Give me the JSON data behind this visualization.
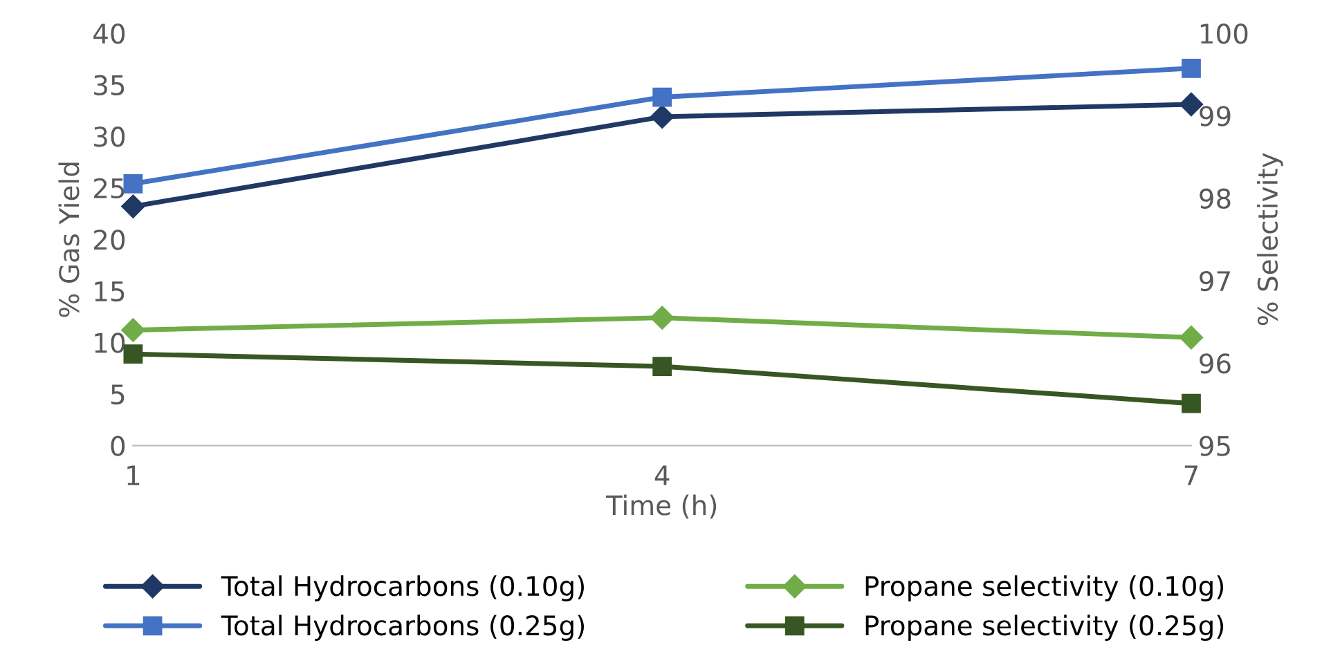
{
  "chart_data": {
    "type": "line",
    "xlabel": "Time (h)",
    "ylabel": "% Gas Yield",
    "y2label": "% Selectivity",
    "x": [
      1,
      4,
      7
    ],
    "xlim": [
      1,
      7
    ],
    "xticks": [
      1,
      4,
      7
    ],
    "ylim": [
      0,
      40
    ],
    "yticks": [
      0,
      5,
      10,
      15,
      20,
      25,
      30,
      35,
      40
    ],
    "y2lim": [
      95,
      100
    ],
    "y2ticks": [
      95,
      96,
      97,
      98,
      99,
      100
    ],
    "grid": false,
    "legend": "bottom",
    "line_style": "solid",
    "series": [
      {
        "name": "Total Hydrocarbons (0.10g)",
        "color": "#203864",
        "marker": "diamond",
        "values": [
          23.2,
          31.9,
          33.1
        ]
      },
      {
        "name": "Total Hydrocarbons (0.25g)",
        "color": "#4472c4",
        "marker": "square",
        "values": [
          25.4,
          33.8,
          36.6
        ]
      },
      {
        "name": "Propane selectivity (0.10g)",
        "color": "#70ad47",
        "marker": "diamond",
        "axis": "y2",
        "values": [
          96.4,
          96.55,
          96.31
        ]
      },
      {
        "name": "Propane selectivity (0.25g)",
        "color": "#375623",
        "marker": "square",
        "axis": "y2",
        "values": [
          96.11,
          95.96,
          95.51
        ]
      }
    ]
  }
}
